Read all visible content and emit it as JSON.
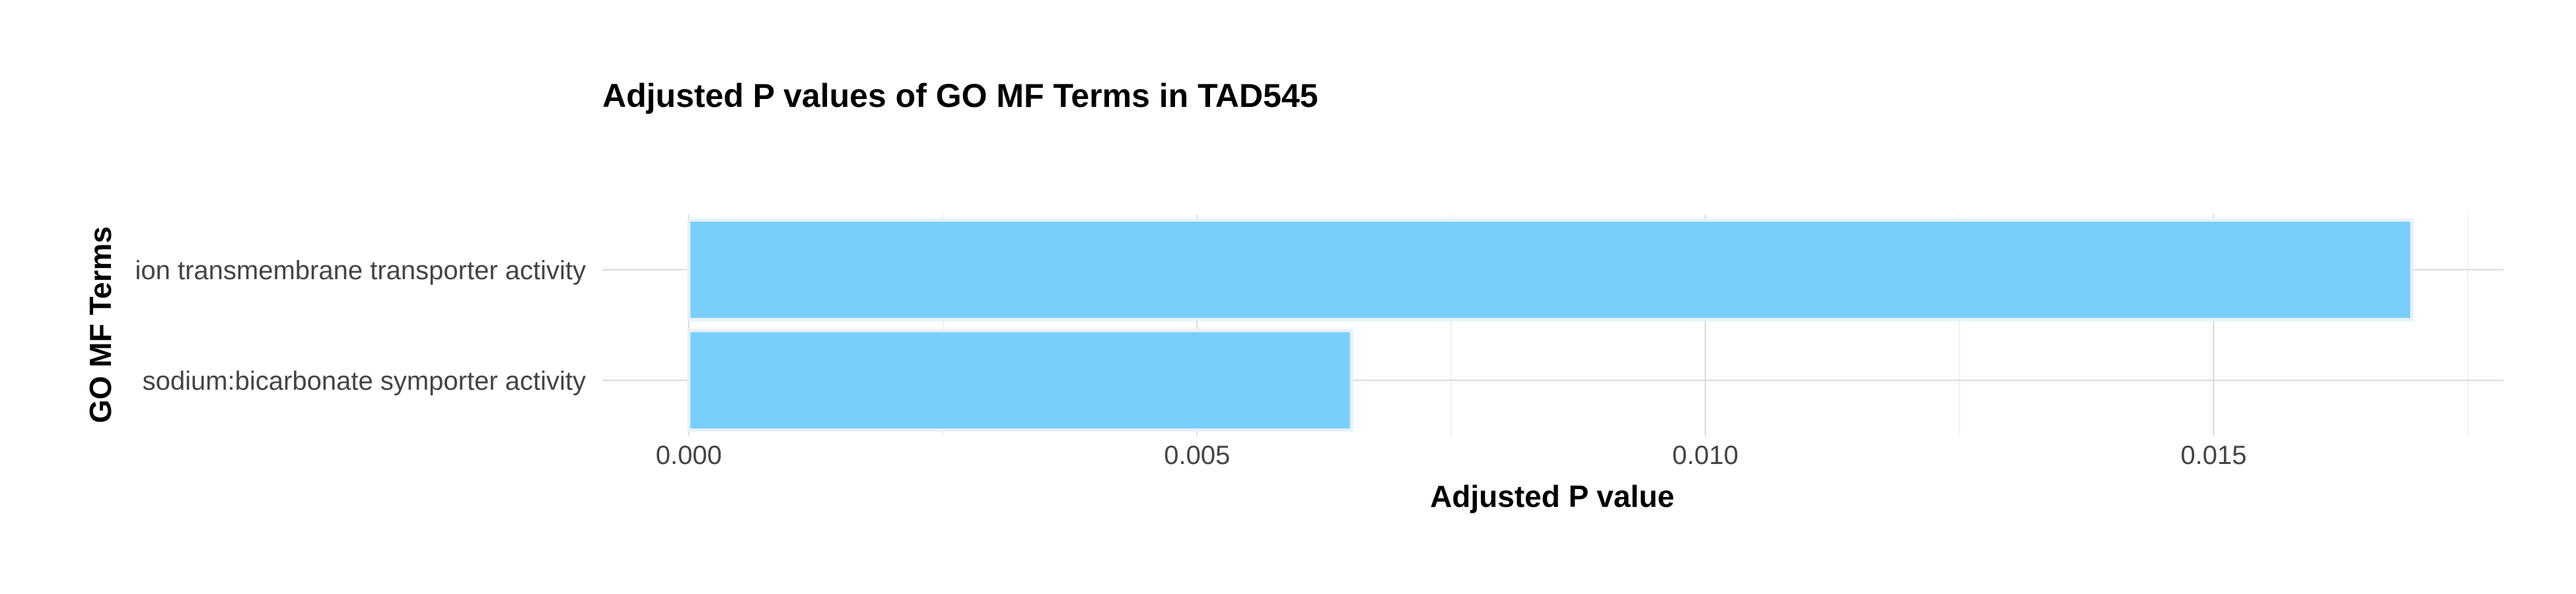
{
  "chart_data": {
    "type": "bar",
    "orientation": "horizontal",
    "title": "Adjusted P values of GO MF Terms in TAD545",
    "xlabel": "Adjusted P value",
    "ylabel": "GO MF Terms",
    "categories": [
      "ion transmembrane transporter activity",
      "sodium:bicarbonate symporter activity"
    ],
    "values": [
      0.01695,
      0.00652
    ],
    "xlim": [
      -0.00085,
      0.01785
    ],
    "xticks": [
      0.0,
      0.005,
      0.01,
      0.015
    ],
    "xtick_labels": [
      "0.000",
      "0.005",
      "0.010",
      "0.015"
    ],
    "bar_color": "#75CEFB",
    "bar_outline_color": "#E8F1FA",
    "grid": true,
    "legend": "none"
  }
}
